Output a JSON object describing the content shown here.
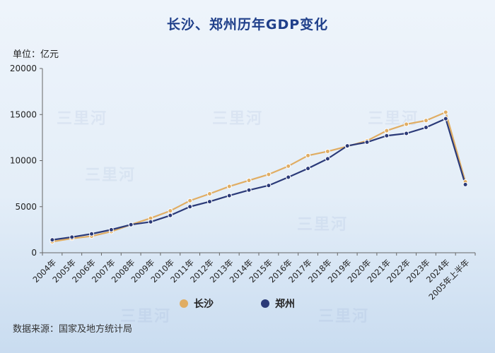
{
  "title": "长沙、郑州历年GDP变化",
  "unit_label": "单位：亿元",
  "source": "数据来源：国家及地方统计局",
  "watermark": "三里河",
  "colors": {
    "changsha": "#e0ad63",
    "zhengzhou": "#2b3a78",
    "axis": "#666666",
    "text": "#222222"
  },
  "chart_data": {
    "type": "line",
    "title": "长沙、郑州历年GDP变化",
    "ylabel": "单位：亿元",
    "xlabel": "",
    "ylim": [
      0,
      20000
    ],
    "yticks": [
      0,
      5000,
      10000,
      15000,
      20000
    ],
    "grid": false,
    "legend_position": "bottom-center",
    "categories": [
      "2004年",
      "2005年",
      "2006年",
      "2007年",
      "2008年",
      "2009年",
      "2010年",
      "2011年",
      "2012年",
      "2013年",
      "2014年",
      "2015年",
      "2016年",
      "2017年",
      "2018年",
      "2019年",
      "2020年",
      "2021年",
      "2022年",
      "2023年",
      "2024年",
      "2005年上半年"
    ],
    "series": [
      {
        "name": "长沙",
        "color": "#e0ad63",
        "values": [
          1200,
          1550,
          1800,
          2300,
          3050,
          3750,
          4550,
          5650,
          6400,
          7200,
          7850,
          8500,
          9400,
          10550,
          11000,
          11550,
          12150,
          13250,
          13950,
          14350,
          15250,
          7700
        ]
      },
      {
        "name": "郑州",
        "color": "#2b3a78",
        "values": [
          1400,
          1700,
          2050,
          2500,
          3050,
          3350,
          4050,
          5000,
          5550,
          6200,
          6800,
          7300,
          8200,
          9150,
          10200,
          11600,
          12000,
          12700,
          12950,
          13600,
          14550,
          7400
        ]
      }
    ]
  }
}
